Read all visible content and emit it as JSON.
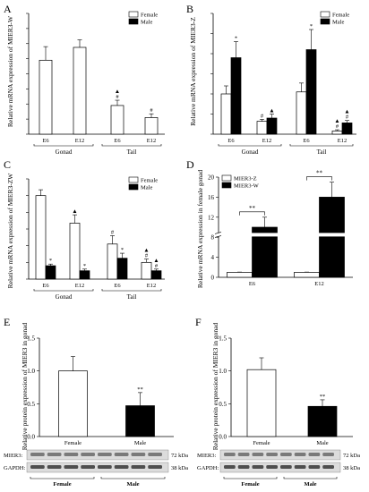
{
  "colors": {
    "female": "#ffffff",
    "male": "#000000",
    "axis": "#000000",
    "blot_band": "#2a2a2a",
    "blot_bg": "#dcdcdc"
  },
  "chart_data": [
    {
      "panel": "A",
      "type": "bar",
      "ylabel": "Relative mRNA expression of MIER3-W",
      "groups": [
        "Gonad",
        "Tail"
      ],
      "categories": [
        "E6",
        "E12",
        "E6",
        "E12"
      ],
      "legend": [
        "Female",
        "Male"
      ],
      "legend_position": "top-right",
      "ylim": [
        0,
        1.6
      ],
      "series": [
        {
          "name": "Female",
          "values": [
            0.98,
            1.15,
            0.38,
            0.22
          ],
          "errors": [
            0.18,
            0.1,
            0.07,
            0.05
          ],
          "marks": [
            "",
            "",
            "▲\n#",
            "#"
          ]
        }
      ]
    },
    {
      "panel": "B",
      "type": "bar",
      "ylabel": "Relative mRNA expression of MIER3-Z",
      "groups": [
        "Gonad",
        "Tail"
      ],
      "categories": [
        "E6",
        "E12",
        "E6",
        "E12"
      ],
      "legend": [
        "Female",
        "Male"
      ],
      "legend_position": "top-right",
      "ylim": [
        0,
        3
      ],
      "series": [
        {
          "name": "Female",
          "values": [
            1.0,
            0.32,
            1.05,
            0.08
          ],
          "errors": [
            0.2,
            0.05,
            0.22,
            0.03
          ],
          "marks": [
            "",
            "#",
            "",
            "▲\n#"
          ]
        },
        {
          "name": "Male",
          "values": [
            1.9,
            0.4,
            2.1,
            0.28
          ],
          "errors": [
            0.4,
            0.1,
            0.5,
            0.06
          ],
          "marks": [
            "*",
            "▲",
            "*",
            "▲\n#"
          ]
        }
      ]
    },
    {
      "panel": "C",
      "type": "bar",
      "ylabel": "Relative mRNA expression of MIER3-ZW",
      "groups": [
        "Gonad",
        "Tail"
      ],
      "categories": [
        "E6",
        "E12",
        "E6",
        "E12"
      ],
      "legend": [
        "Female",
        "Male"
      ],
      "legend_position": "top-right",
      "ylim": [
        0,
        1.2
      ],
      "series": [
        {
          "name": "Female",
          "values": [
            1.0,
            0.67,
            0.42,
            0.2
          ],
          "errors": [
            0.07,
            0.1,
            0.1,
            0.04
          ],
          "marks": [
            "",
            "▲",
            "#",
            "▲\n#"
          ]
        },
        {
          "name": "Male",
          "values": [
            0.16,
            0.1,
            0.25,
            0.1
          ],
          "errors": [
            0.02,
            0.02,
            0.06,
            0.02
          ],
          "marks": [
            "*",
            "*",
            "*",
            "▲\n#"
          ]
        }
      ]
    },
    {
      "panel": "D",
      "type": "bar",
      "ylabel": "Relative mRNA expression in female gonad",
      "categories": [
        "E6",
        "E12"
      ],
      "legend": [
        "MIER3-Z",
        "MIER3-W"
      ],
      "legend_position": "top-left",
      "ylim": [
        0,
        20
      ],
      "yticks": [
        0,
        4,
        8,
        12,
        16,
        20
      ],
      "axis_break": true,
      "series": [
        {
          "name": "MIER3-Z",
          "values": [
            1.0,
            1.0
          ],
          "errors": [
            0.05,
            0.05
          ]
        },
        {
          "name": "MIER3-W",
          "values": [
            10,
            16
          ],
          "errors": [
            2,
            3
          ]
        }
      ],
      "annotations": [
        "**",
        "**"
      ]
    },
    {
      "panel": "E",
      "type": "bar",
      "ylabel": "Relative protein expression of MIER3 in gonad",
      "categories": [
        "Female",
        "Male"
      ],
      "ylim": [
        0,
        1.5
      ],
      "yticks": [
        "0.0",
        "0.5",
        "1.0",
        "1.5"
      ],
      "values": [
        1.0,
        0.47
      ],
      "errors": [
        0.22,
        0.2
      ],
      "marks": [
        "",
        "**"
      ],
      "blot": {
        "rows": [
          "MIER3:",
          "GAPDH:"
        ],
        "sizes": [
          "72 kDa",
          "38 kDa"
        ],
        "lanes": [
          "Female",
          "Male"
        ]
      }
    },
    {
      "panel": "F",
      "type": "bar",
      "ylabel": "Relative protein expression of MIER3 in gonad",
      "categories": [
        "Female",
        "Male"
      ],
      "ylim": [
        0,
        1.5
      ],
      "yticks": [
        "0.0",
        "0.5",
        "1.0",
        "1.5"
      ],
      "values": [
        1.02,
        0.46
      ],
      "errors": [
        0.18,
        0.1
      ],
      "marks": [
        "",
        "**"
      ],
      "blot": {
        "rows": [
          "MIER3:",
          "GAPDH:"
        ],
        "sizes": [
          "72 kDa",
          "38 kDa"
        ],
        "lanes": [
          "Female",
          "Male"
        ]
      }
    }
  ]
}
